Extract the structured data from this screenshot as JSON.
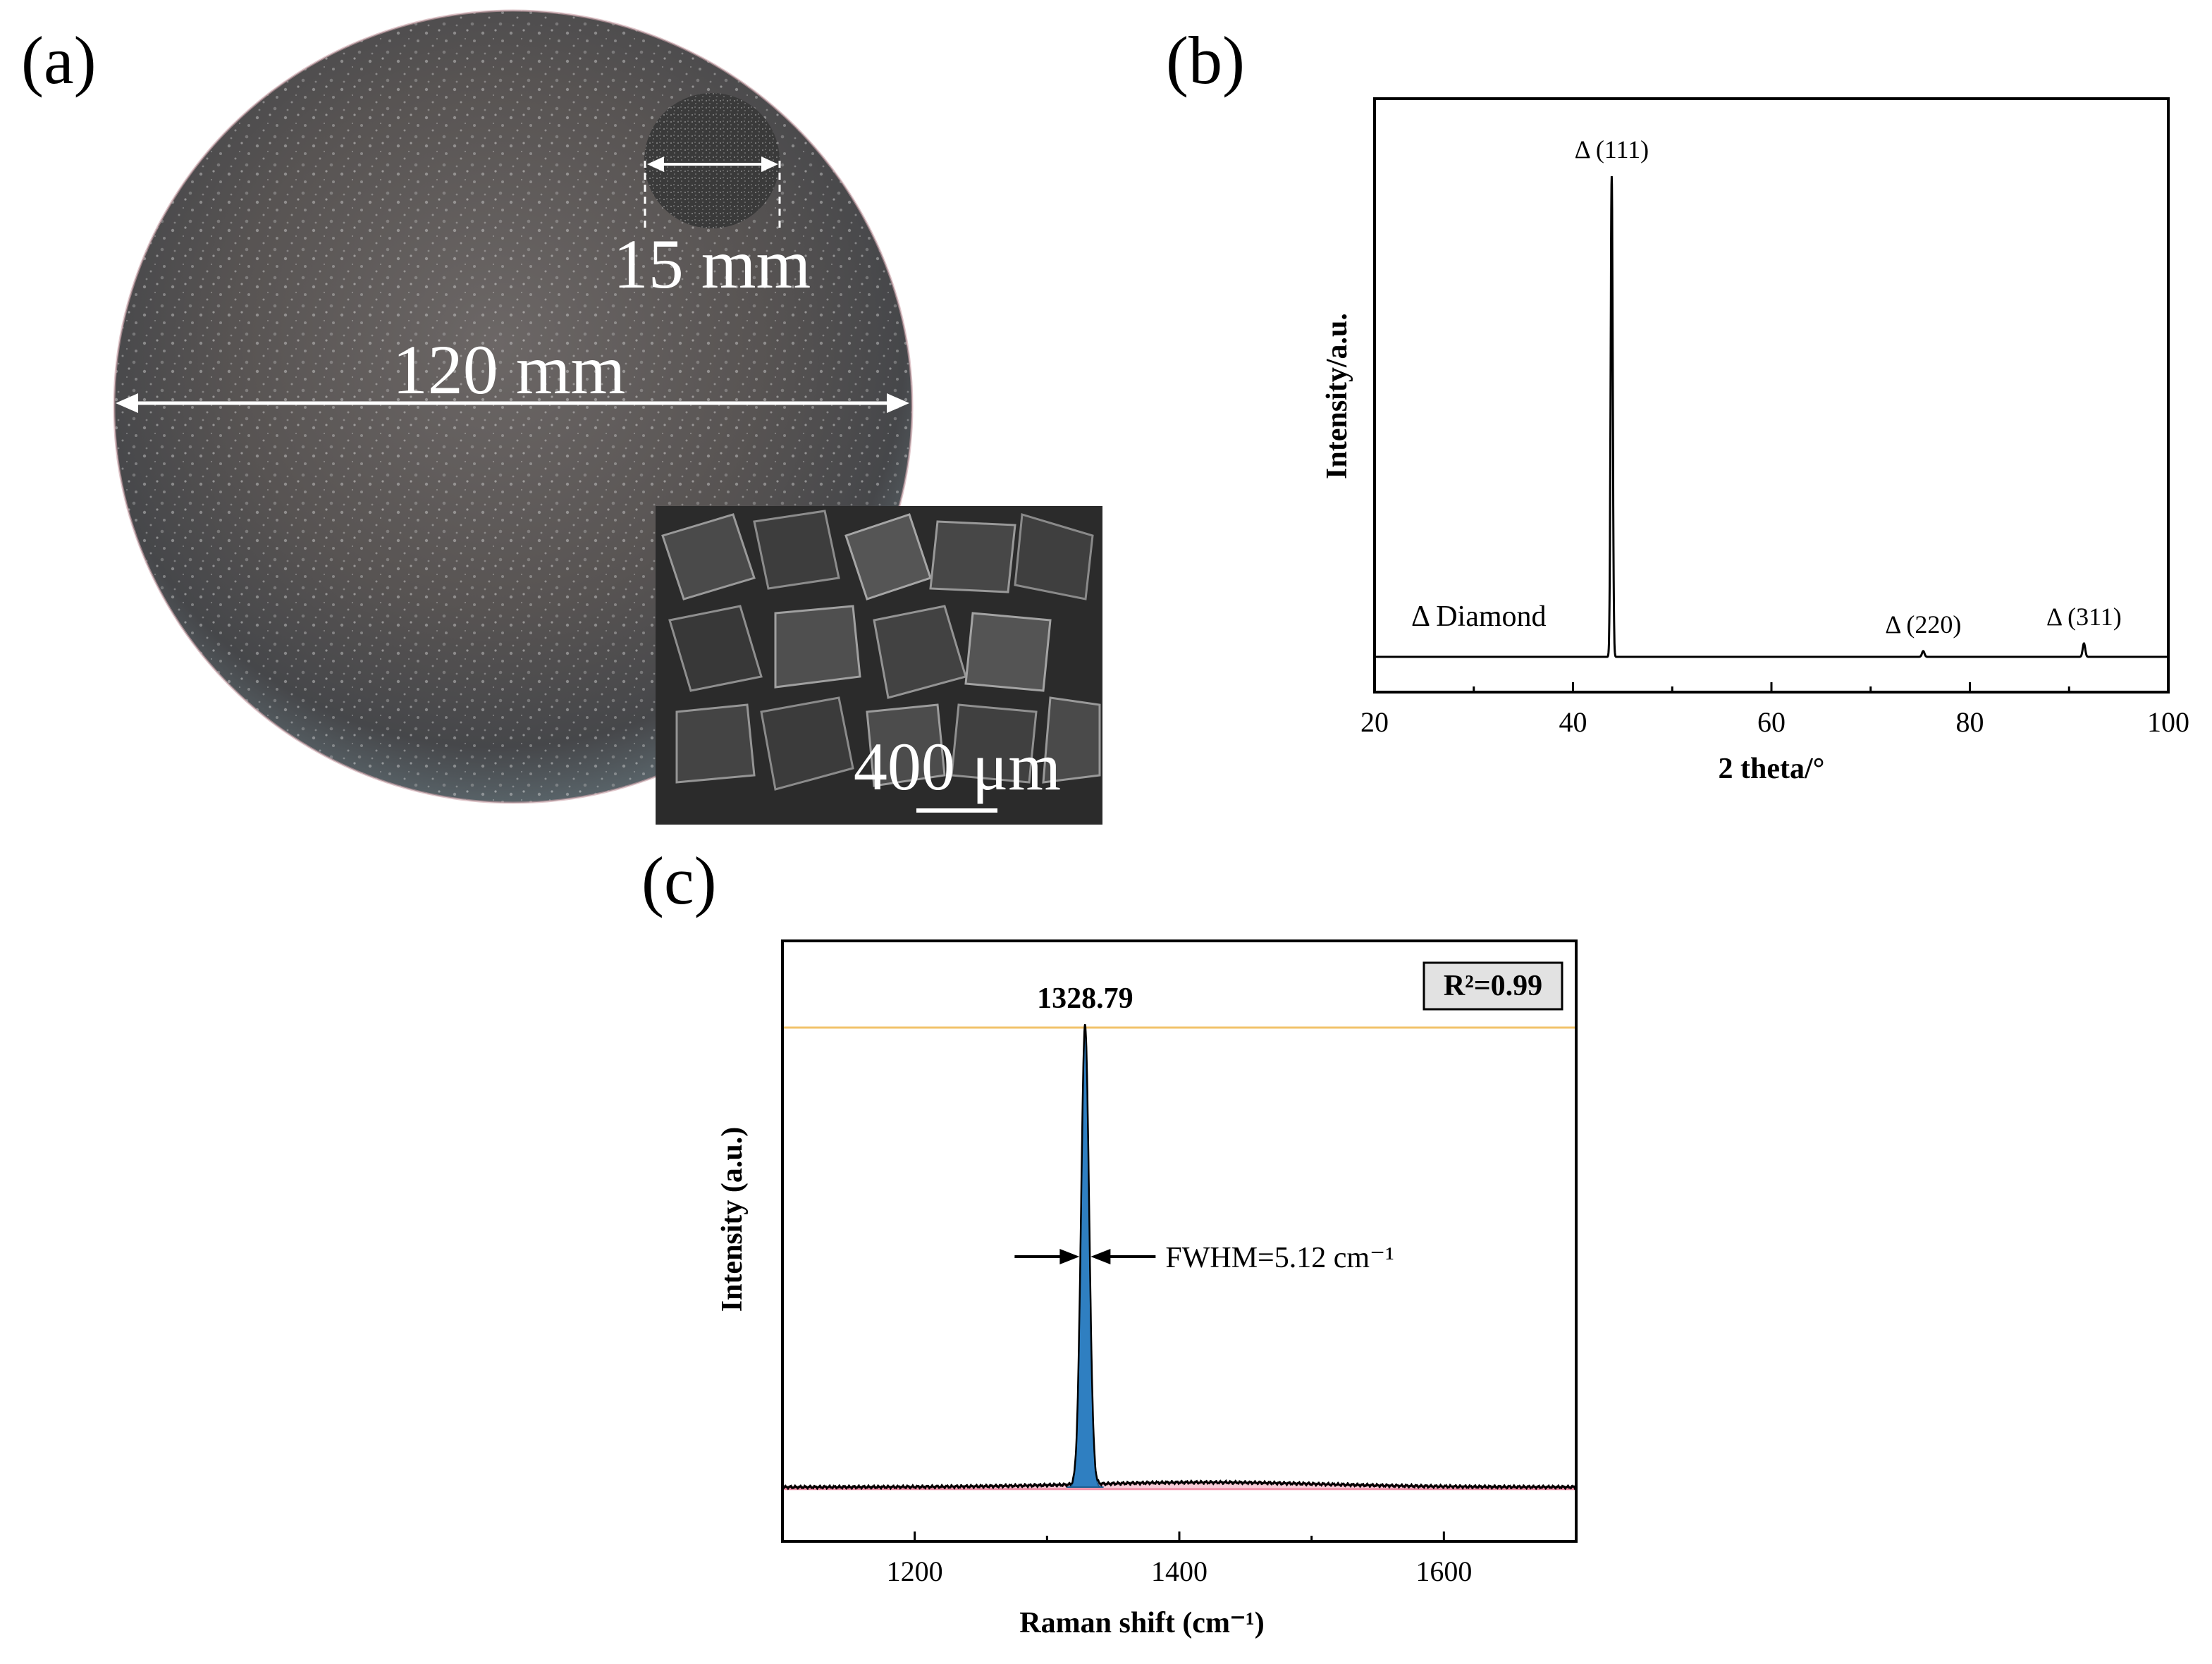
{
  "panels": {
    "a": {
      "letter": "(a)",
      "diameter_label": "120 mm",
      "inset_label": "15 mm",
      "sem_scale_label": "400 μm"
    },
    "b": {
      "letter": "(b)",
      "chart_data": {
        "type": "line",
        "xlabel": "2 theta/°",
        "ylabel": "Intensity/a.u.",
        "xlim": [
          20,
          100
        ],
        "ylim": [
          0,
          1
        ],
        "xticks": [
          20,
          40,
          60,
          80,
          100
        ],
        "legend_text": "Δ Diamond",
        "baseline": 0.065,
        "peaks": [
          {
            "label": "Δ (111)",
            "x": 43.9,
            "height": 1.0,
            "width": 0.25
          },
          {
            "label": "Δ (220)",
            "x": 75.3,
            "height": 0.012,
            "width": 0.3
          },
          {
            "label": "Δ (311)",
            "x": 91.5,
            "height": 0.028,
            "width": 0.3
          }
        ],
        "line_color": "#000000"
      }
    },
    "c": {
      "letter": "(c)",
      "chart_data": {
        "type": "line",
        "xlabel": "Raman shift (cm⁻¹)",
        "ylabel": "Intensity (a.u.)",
        "xlim": [
          1100,
          1700
        ],
        "ylim": [
          0,
          1
        ],
        "xticks": [
          1200,
          1400,
          1600
        ],
        "peak_position": 1328.79,
        "peak_label": "1328.79",
        "fwhm": 5.12,
        "fwhm_label": "FWHM=5.12 cm⁻¹",
        "r2_label": "R²=0.99",
        "baseline": 0.035,
        "peak_height": 1.0,
        "reference_line_y": 1.0,
        "colors": {
          "fit": "#2f7fc1",
          "background": "#f08fa8",
          "reference": "#f2c36b",
          "spectrum": "#000000"
        }
      }
    }
  }
}
